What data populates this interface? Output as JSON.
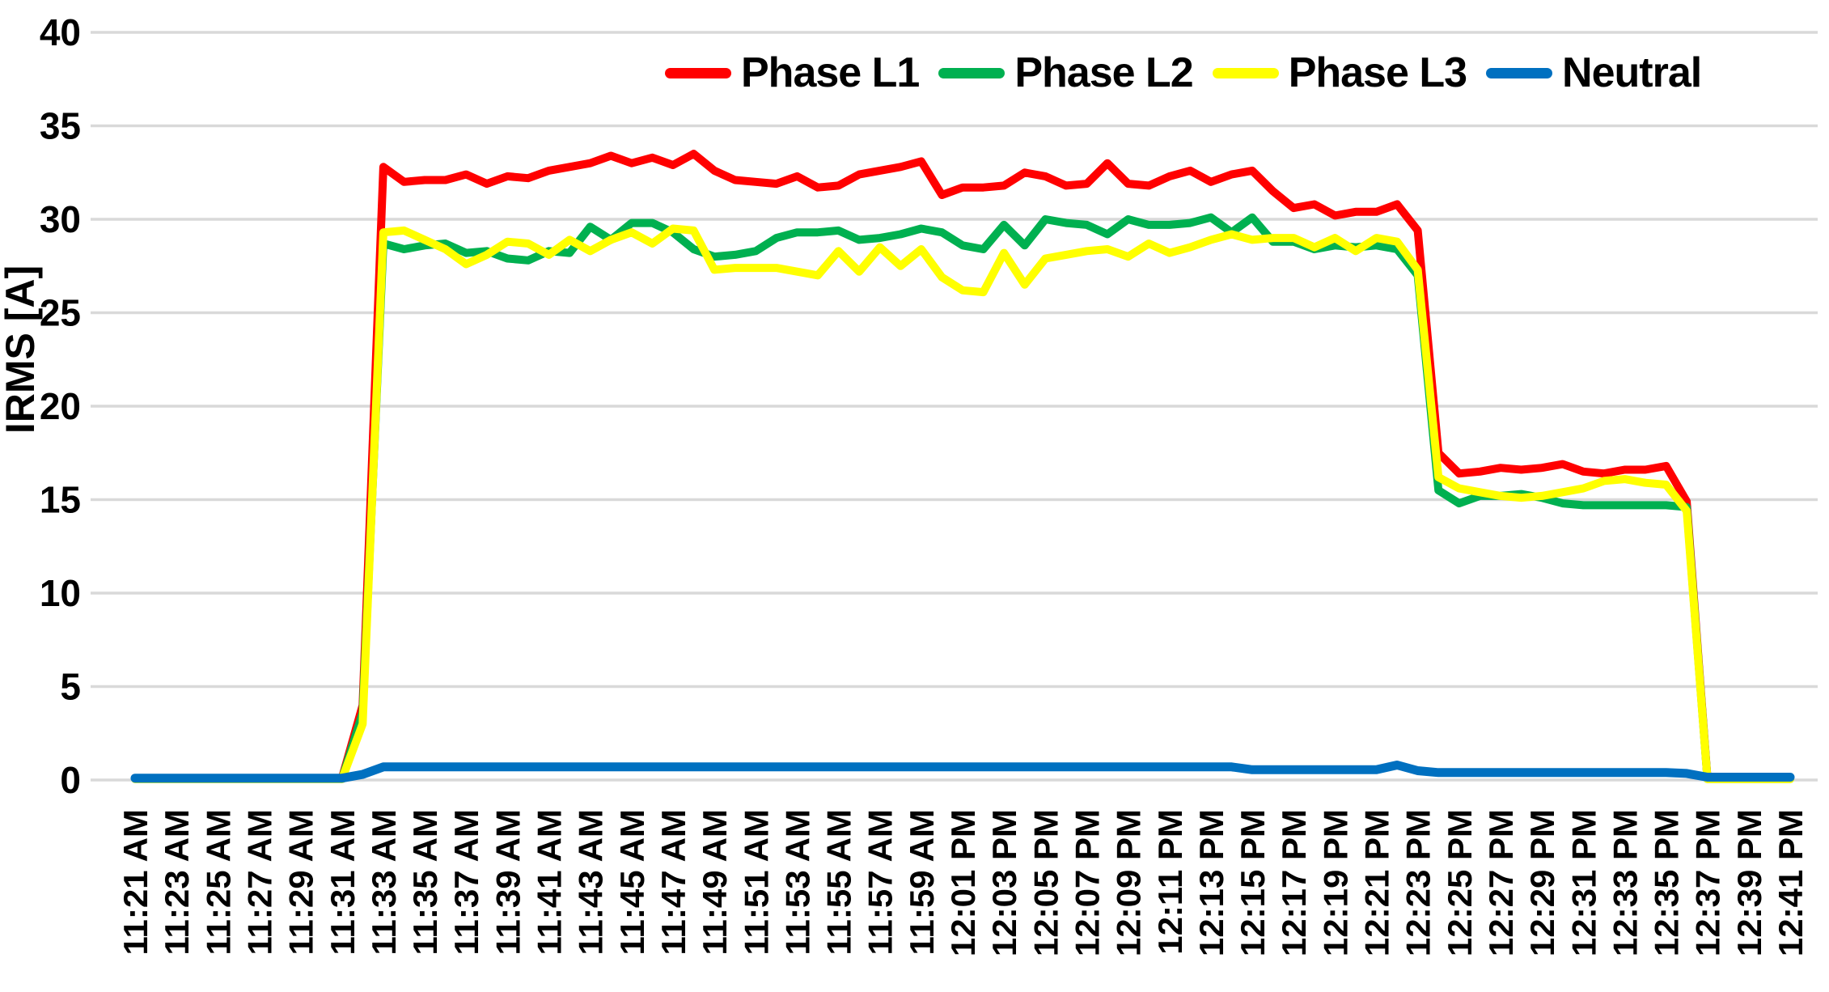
{
  "chart_data": {
    "type": "line",
    "title": "",
    "xlabel": "",
    "ylabel": "IRMS [A]",
    "ylim": [
      0,
      40
    ],
    "ytick_step": 5,
    "ytick_labels": [
      "0",
      "5",
      "10",
      "15",
      "20",
      "25",
      "30",
      "35",
      "40"
    ],
    "grid": "horizontal",
    "gridline_color": "#D9D9D9",
    "legend_position": "top",
    "x_points_per_tick": 2,
    "x_tick_labels": [
      "11:21 AM",
      "11:23 AM",
      "11:25 AM",
      "11:27 AM",
      "11:29 AM",
      "11:31 AM",
      "11:33 AM",
      "11:35 AM",
      "11:37 AM",
      "11:39 AM",
      "11:41 AM",
      "11:43 AM",
      "11:45 AM",
      "11:47 AM",
      "11:49 AM",
      "11:51 AM",
      "11:53 AM",
      "11:55 AM",
      "11:57 AM",
      "11:59 AM",
      "12:01 PM",
      "12:03 PM",
      "12:05 PM",
      "12:07 PM",
      "12:09 PM",
      "12:11 PM",
      "12:13 PM",
      "12:15 PM",
      "12:17 PM",
      "12:19 PM",
      "12:21 PM",
      "12:23 PM",
      "12:25 PM",
      "12:27 PM",
      "12:29 PM",
      "12:31 PM",
      "12:33 PM",
      "12:35 PM",
      "12:37 PM",
      "12:39 PM",
      "12:41 PM"
    ],
    "series": [
      {
        "name": "Phase L1",
        "color": "#FF0000",
        "values": [
          0.1,
          0.1,
          0.1,
          0.1,
          0.1,
          0.1,
          0.1,
          0.1,
          0.1,
          0.1,
          0.1,
          4.0,
          32.8,
          32.0,
          32.1,
          32.1,
          32.4,
          31.9,
          32.3,
          32.2,
          32.6,
          32.8,
          33.0,
          33.4,
          33.0,
          33.3,
          32.9,
          33.5,
          32.6,
          32.1,
          32.0,
          31.9,
          32.3,
          31.7,
          31.8,
          32.4,
          32.6,
          32.8,
          33.1,
          31.3,
          31.7,
          31.7,
          31.8,
          32.5,
          32.3,
          31.8,
          31.9,
          33.0,
          31.9,
          31.8,
          32.3,
          32.6,
          32.0,
          32.4,
          32.6,
          31.5,
          30.6,
          30.8,
          30.2,
          30.4,
          30.4,
          30.8,
          29.4,
          17.5,
          16.4,
          16.5,
          16.7,
          16.6,
          16.7,
          16.9,
          16.5,
          16.4,
          16.6,
          16.6,
          16.8,
          14.9,
          0.1,
          0.1,
          0.1,
          0.1,
          0.1
        ]
      },
      {
        "name": "Phase L2",
        "color": "#00B050",
        "values": [
          0.05,
          0.05,
          0.05,
          0.05,
          0.05,
          0.05,
          0.05,
          0.05,
          0.05,
          0.05,
          0.05,
          3.6,
          28.7,
          28.4,
          28.6,
          28.7,
          28.2,
          28.3,
          27.9,
          27.8,
          28.3,
          28.2,
          29.6,
          28.9,
          29.8,
          29.8,
          29.3,
          28.4,
          28.0,
          28.1,
          28.3,
          29.0,
          29.3,
          29.3,
          29.4,
          28.9,
          29.0,
          29.2,
          29.5,
          29.3,
          28.6,
          28.4,
          29.7,
          28.6,
          30.0,
          29.8,
          29.7,
          29.2,
          30.0,
          29.7,
          29.7,
          29.8,
          30.1,
          29.3,
          30.1,
          28.8,
          28.8,
          28.4,
          28.6,
          28.5,
          28.6,
          28.4,
          27.0,
          15.5,
          14.8,
          15.2,
          15.2,
          15.3,
          15.1,
          14.8,
          14.7,
          14.7,
          14.7,
          14.7,
          14.7,
          14.6,
          0.05,
          0.05,
          0.05,
          0.05,
          0.05
        ]
      },
      {
        "name": "Phase L3",
        "color": "#FFFF00",
        "values": [
          0.05,
          0.05,
          0.05,
          0.05,
          0.05,
          0.05,
          0.05,
          0.05,
          0.05,
          0.05,
          0.05,
          3.0,
          29.3,
          29.4,
          28.9,
          28.4,
          27.6,
          28.1,
          28.8,
          28.7,
          28.1,
          28.9,
          28.3,
          28.9,
          29.3,
          28.7,
          29.5,
          29.4,
          27.3,
          27.4,
          27.4,
          27.4,
          27.2,
          27.0,
          28.3,
          27.2,
          28.5,
          27.5,
          28.4,
          26.9,
          26.2,
          26.1,
          28.2,
          26.5,
          27.9,
          28.1,
          28.3,
          28.4,
          28.0,
          28.7,
          28.2,
          28.5,
          28.9,
          29.2,
          28.9,
          29.0,
          29.0,
          28.5,
          29.0,
          28.3,
          29.0,
          28.8,
          27.3,
          16.2,
          15.6,
          15.4,
          15.2,
          15.1,
          15.2,
          15.4,
          15.6,
          16.0,
          16.1,
          15.9,
          15.8,
          14.4,
          0.05,
          0.05,
          0.05,
          0.05,
          0.05
        ]
      },
      {
        "name": "Neutral",
        "color": "#0070C0",
        "values": [
          0.1,
          0.1,
          0.1,
          0.1,
          0.1,
          0.1,
          0.1,
          0.1,
          0.1,
          0.1,
          0.1,
          0.3,
          0.7,
          0.7,
          0.7,
          0.7,
          0.7,
          0.7,
          0.7,
          0.7,
          0.7,
          0.7,
          0.7,
          0.7,
          0.7,
          0.7,
          0.7,
          0.7,
          0.7,
          0.7,
          0.7,
          0.7,
          0.7,
          0.7,
          0.7,
          0.7,
          0.7,
          0.7,
          0.7,
          0.7,
          0.7,
          0.7,
          0.7,
          0.7,
          0.7,
          0.7,
          0.7,
          0.7,
          0.7,
          0.7,
          0.7,
          0.7,
          0.7,
          0.7,
          0.55,
          0.55,
          0.55,
          0.55,
          0.55,
          0.55,
          0.55,
          0.8,
          0.5,
          0.4,
          0.4,
          0.4,
          0.4,
          0.4,
          0.4,
          0.4,
          0.4,
          0.4,
          0.4,
          0.4,
          0.4,
          0.35,
          0.15,
          0.15,
          0.15,
          0.15,
          0.15
        ]
      }
    ]
  }
}
